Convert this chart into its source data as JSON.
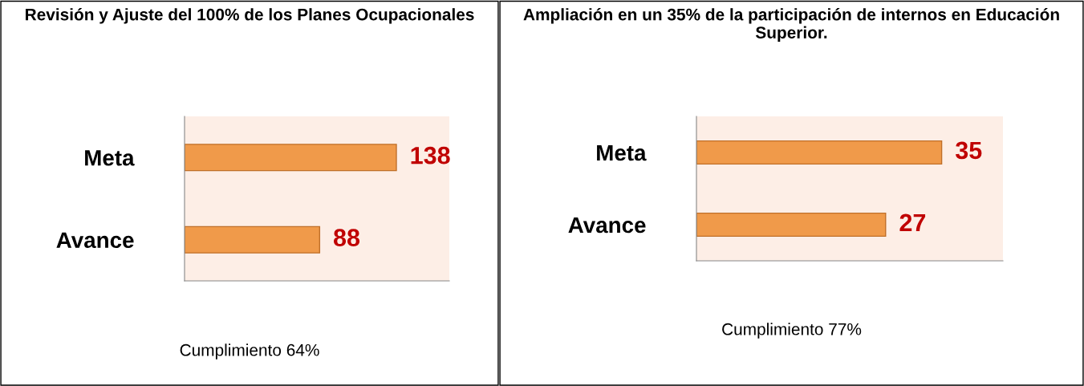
{
  "chart_data": [
    {
      "type": "bar",
      "orientation": "horizontal",
      "title": "Revisión y Ajuste del 100% de los Planes Ocupacionales",
      "categories": [
        "Meta",
        "Avance"
      ],
      "values": [
        138,
        88
      ],
      "color": "#f09a4a",
      "data_labels": true,
      "tick_labels": "y",
      "grid": false,
      "legend": false,
      "annotations": [
        "Cumplimiento 64%"
      ]
    },
    {
      "type": "bar",
      "orientation": "horizontal",
      "title": "Ampliación en un 35% de la participación de internos en Educación Superior.",
      "categories": [
        "Meta",
        "Avance"
      ],
      "values": [
        35,
        27
      ],
      "color": "#f09a4a",
      "data_labels": true,
      "tick_labels": "y",
      "grid": false,
      "legend": false,
      "annotations": [
        "Cumplimiento 77%"
      ]
    }
  ]
}
